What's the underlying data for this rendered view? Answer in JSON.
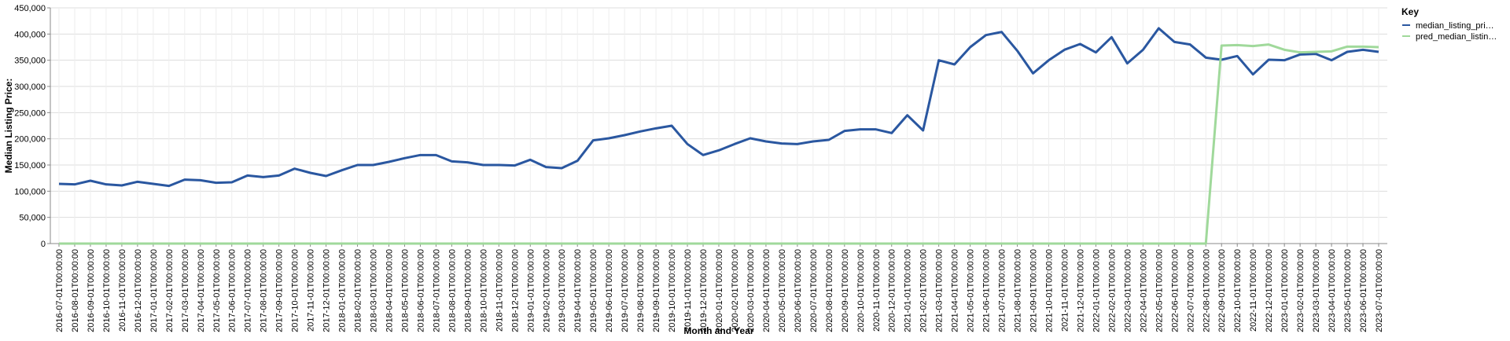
{
  "chart_data": {
    "type": "line",
    "x_label": "Month and Year",
    "y_label": "Median Listing Price:",
    "legend_title": "Key",
    "legend_position": "right",
    "grid": true,
    "categories": [
      "2016-07-01T00:00:00",
      "2016-08-01T00:00:00",
      "2016-09-01T00:00:00",
      "2016-10-01T00:00:00",
      "2016-11-01T00:00:00",
      "2016-12-01T00:00:00",
      "2017-01-01T00:00:00",
      "2017-02-01T00:00:00",
      "2017-03-01T00:00:00",
      "2017-04-01T00:00:00",
      "2017-05-01T00:00:00",
      "2017-06-01T00:00:00",
      "2017-07-01T00:00:00",
      "2017-08-01T00:00:00",
      "2017-09-01T00:00:00",
      "2017-10-01T00:00:00",
      "2017-11-01T00:00:00",
      "2017-12-01T00:00:00",
      "2018-01-01T00:00:00",
      "2018-02-01T00:00:00",
      "2018-03-01T00:00:00",
      "2018-04-01T00:00:00",
      "2018-05-01T00:00:00",
      "2018-06-01T00:00:00",
      "2018-07-01T00:00:00",
      "2018-08-01T00:00:00",
      "2018-09-01T00:00:00",
      "2018-10-01T00:00:00",
      "2018-11-01T00:00:00",
      "2018-12-01T00:00:00",
      "2019-01-01T00:00:00",
      "2019-02-01T00:00:00",
      "2019-03-01T00:00:00",
      "2019-04-01T00:00:00",
      "2019-05-01T00:00:00",
      "2019-06-01T00:00:00",
      "2019-07-01T00:00:00",
      "2019-08-01T00:00:00",
      "2019-09-01T00:00:00",
      "2019-10-01T00:00:00",
      "2019-11-01T00:00:00",
      "2019-12-01T00:00:00",
      "2020-01-01T00:00:00",
      "2020-02-01T00:00:00",
      "2020-03-01T00:00:00",
      "2020-04-01T00:00:00",
      "2020-05-01T00:00:00",
      "2020-06-01T00:00:00",
      "2020-07-01T00:00:00",
      "2020-08-01T00:00:00",
      "2020-09-01T00:00:00",
      "2020-10-01T00:00:00",
      "2020-11-01T00:00:00",
      "2020-12-01T00:00:00",
      "2021-01-01T00:00:00",
      "2021-02-01T00:00:00",
      "2021-03-01T00:00:00",
      "2021-04-01T00:00:00",
      "2021-05-01T00:00:00",
      "2021-06-01T00:00:00",
      "2021-07-01T00:00:00",
      "2021-08-01T00:00:00",
      "2021-09-01T00:00:00",
      "2021-10-01T00:00:00",
      "2021-11-01T00:00:00",
      "2021-12-01T00:00:00",
      "2022-01-01T00:00:00",
      "2022-02-01T00:00:00",
      "2022-03-01T00:00:00",
      "2022-04-01T00:00:00",
      "2022-05-01T00:00:00",
      "2022-06-01T00:00:00",
      "2022-07-01T00:00:00",
      "2022-08-01T00:00:00",
      "2022-09-01T00:00:00",
      "2022-10-01T00:00:00",
      "2022-11-01T00:00:00",
      "2022-12-01T00:00:00",
      "2023-01-01T00:00:00",
      "2023-02-01T00:00:00",
      "2023-03-01T00:00:00",
      "2023-04-01T00:00:00",
      "2023-05-01T00:00:00",
      "2023-06-01T00:00:00",
      "2023-07-01T00:00:00"
    ],
    "series": [
      {
        "name": "median_listing_pri…",
        "color": "#2a57a0",
        "values": [
          114000,
          113000,
          120000,
          113000,
          111000,
          118000,
          114000,
          110000,
          122000,
          121000,
          116000,
          117000,
          130000,
          127000,
          130000,
          143000,
          135000,
          129000,
          140000,
          150000,
          150000,
          156000,
          163000,
          169000,
          169000,
          157000,
          155000,
          150000,
          150000,
          149000,
          160000,
          146000,
          144000,
          158000,
          197000,
          201000,
          207000,
          214000,
          220000,
          225000,
          190000,
          169000,
          178000,
          190000,
          201000,
          195000,
          191000,
          190000,
          195000,
          198000,
          215000,
          218000,
          218000,
          211000,
          245000,
          216000,
          350000,
          342000,
          375000,
          398000,
          404000,
          368000,
          325000,
          350000,
          370000,
          381000,
          365000,
          394000,
          344000,
          370000,
          411000,
          385000,
          380000,
          355000,
          351000,
          358000,
          323000,
          351000,
          350000,
          361000,
          362000,
          350000,
          366000,
          370000,
          366000
        ]
      },
      {
        "name": "pred_median_listin…",
        "color": "#a0d99b",
        "values": [
          0,
          0,
          0,
          0,
          0,
          0,
          0,
          0,
          0,
          0,
          0,
          0,
          0,
          0,
          0,
          0,
          0,
          0,
          0,
          0,
          0,
          0,
          0,
          0,
          0,
          0,
          0,
          0,
          0,
          0,
          0,
          0,
          0,
          0,
          0,
          0,
          0,
          0,
          0,
          0,
          0,
          0,
          0,
          0,
          0,
          0,
          0,
          0,
          0,
          0,
          0,
          0,
          0,
          0,
          0,
          0,
          0,
          0,
          0,
          0,
          0,
          0,
          0,
          0,
          0,
          0,
          0,
          0,
          0,
          0,
          0,
          0,
          0,
          0,
          378000,
          379000,
          377000,
          380000,
          370000,
          365000,
          366000,
          367000,
          376000,
          376000,
          375000
        ]
      }
    ],
    "ylim": [
      0,
      450000
    ],
    "yticks": [
      0,
      {
        "value": 50000,
        "label": "50,000"
      },
      {
        "value": 100000,
        "label": "100,000"
      },
      {
        "value": 150000,
        "label": "150,000"
      },
      {
        "value": 200000,
        "label": "200,000"
      },
      {
        "value": 250000,
        "label": "250,000"
      },
      {
        "value": 300000,
        "label": "300,000"
      },
      {
        "value": 350000,
        "label": "350,000"
      },
      {
        "value": 400000,
        "label": "400,000"
      },
      {
        "value": 450000,
        "label": "450,000"
      }
    ]
  }
}
